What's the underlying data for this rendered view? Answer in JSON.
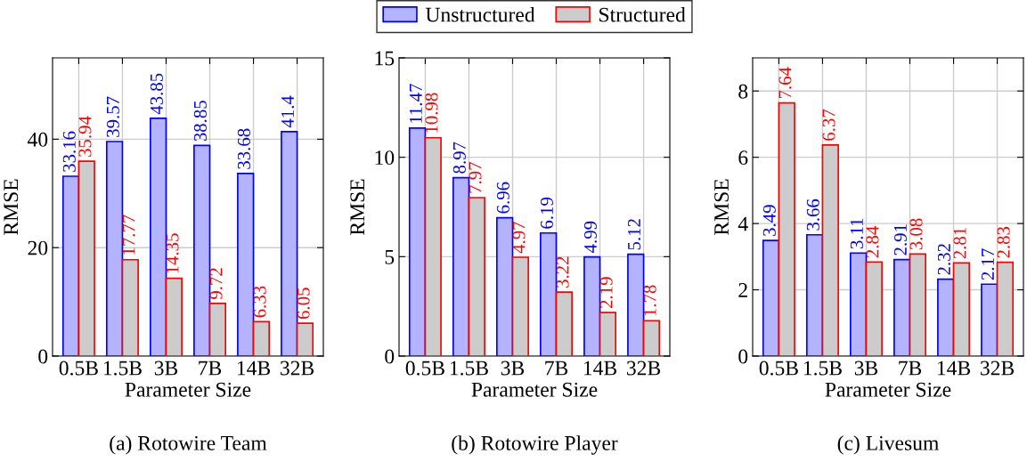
{
  "chart_data": [
    {
      "type": "bar",
      "title": "(a) Rotowire Team",
      "xlabel": "Parameter Size",
      "ylabel": "RMSE",
      "categories": [
        "0.5B",
        "1.5B",
        "3B",
        "7B",
        "14B",
        "32B"
      ],
      "series": [
        {
          "color": "#b3b3ff",
          "values": [
            33.16,
            39.57,
            43.85,
            38.85,
            33.68,
            41.4
          ]
        },
        {
          "color": "#cccccc",
          "values": [
            35.94,
            17.77,
            14.35,
            9.72,
            6.33,
            6.05
          ]
        }
      ],
      "ylim": [
        0,
        55
      ],
      "yticks": [
        0,
        20,
        40
      ],
      "grid": true,
      "data_labels": true
    },
    {
      "type": "bar",
      "title": "(b) Rotowire Player",
      "xlabel": "Parameter Size",
      "ylabel": "RMSE",
      "categories": [
        "0.5B",
        "1.5B",
        "3B",
        "7B",
        "14B",
        "32B"
      ],
      "series": [
        {
          "name": "Unstructured",
          "color": "#b3b3ff",
          "values": [
            11.47,
            8.97,
            6.96,
            6.19,
            4.99,
            5.12
          ]
        },
        {
          "name": "Structured",
          "color": "#cccccc",
          "values": [
            10.98,
            7.97,
            4.97,
            3.22,
            2.19,
            1.78
          ]
        }
      ],
      "ylim": [
        0,
        15
      ],
      "yticks": [
        0,
        5,
        10,
        15
      ],
      "grid": true,
      "data_labels": true,
      "legend": "top"
    },
    {
      "type": "bar",
      "title": "(c) Livesum",
      "xlabel": "Parameter Size",
      "ylabel": "RMSE",
      "categories": [
        "0.5B",
        "1.5B",
        "3B",
        "7B",
        "14B",
        "32B"
      ],
      "series": [
        {
          "color": "#b3b3ff",
          "values": [
            3.49,
            3.66,
            3.11,
            2.91,
            2.32,
            2.17
          ]
        },
        {
          "color": "#cccccc",
          "values": [
            7.64,
            6.37,
            2.84,
            3.08,
            2.81,
            2.83
          ]
        }
      ],
      "ylim": [
        0,
        9
      ],
      "yticks": [
        0,
        2,
        4,
        6,
        8
      ],
      "grid": true,
      "data_labels": true
    }
  ]
}
